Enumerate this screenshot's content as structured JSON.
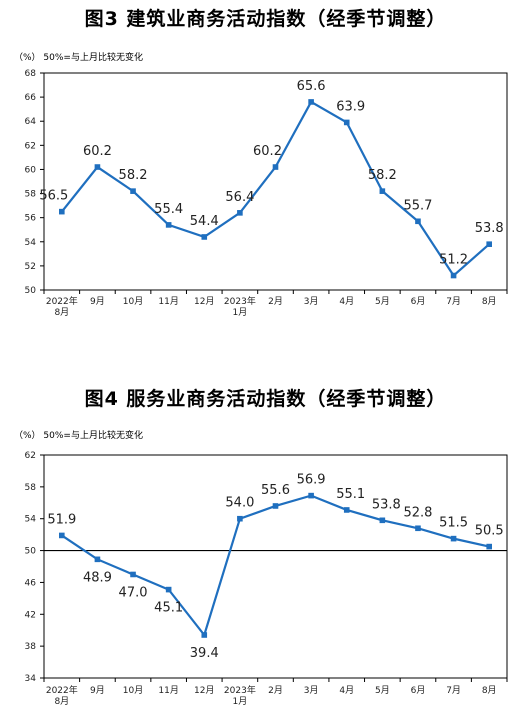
{
  "chart_data": [
    {
      "type": "line",
      "title": "图3  建筑业商务活动指数（经季节调整）",
      "ylabel": "（%）  50%=与上月比较无变化",
      "categories": [
        "2022年\n8月",
        "9月",
        "10月",
        "11月",
        "12月",
        "2023年\n1月",
        "2月",
        "3月",
        "4月",
        "5月",
        "6月",
        "7月",
        "8月"
      ],
      "series": [
        {
          "values": [
            56.5,
            60.2,
            58.2,
            55.4,
            54.4,
            56.4,
            60.2,
            65.6,
            63.9,
            58.2,
            55.7,
            51.2,
            53.8
          ]
        }
      ],
      "ylim": [
        50,
        68
      ],
      "yticks": [
        50,
        52,
        54,
        56,
        58,
        60,
        62,
        64,
        66,
        68
      ],
      "grid": false,
      "line_color": "#1f6fbf"
    },
    {
      "type": "line",
      "title": "图4  服务业商务活动指数（经季节调整）",
      "ylabel": "（%）  50%=与上月比较无变化",
      "categories": [
        "2022年\n8月",
        "9月",
        "10月",
        "11月",
        "12月",
        "2023年\n1月",
        "2月",
        "3月",
        "4月",
        "5月",
        "6月",
        "7月",
        "8月"
      ],
      "series": [
        {
          "values": [
            51.9,
            48.9,
            47.0,
            45.1,
            39.4,
            54.0,
            55.6,
            56.9,
            55.1,
            53.8,
            52.8,
            51.5,
            50.5
          ]
        }
      ],
      "ylim": [
        34,
        62
      ],
      "yticks": [
        34,
        38,
        42,
        46,
        50,
        54,
        58,
        62
      ],
      "reference_line": 50,
      "grid": false,
      "line_color": "#1f6fbf"
    }
  ]
}
